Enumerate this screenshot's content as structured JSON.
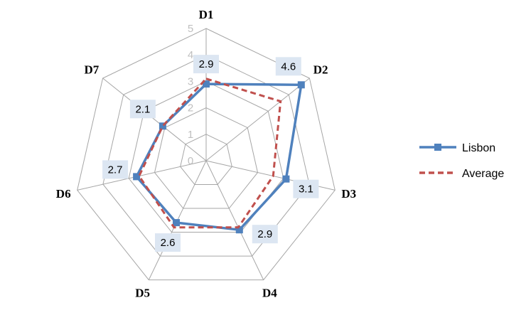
{
  "chart_data": {
    "type": "radar",
    "categories": [
      "D1",
      "D2",
      "D3",
      "D4",
      "D5",
      "D6",
      "D7"
    ],
    "rlim": [
      0,
      5
    ],
    "ticks": [
      "0",
      "1",
      "2",
      "3",
      "4",
      "5"
    ],
    "grid": true,
    "legend_position": "right",
    "series": [
      {
        "name": "Lisbon",
        "values": [
          2.9,
          4.6,
          3.1,
          2.9,
          2.6,
          2.7,
          2.1
        ],
        "data_labels": [
          "2.9",
          "4.6",
          "3.1",
          "2.9",
          "2.6",
          "2.7",
          "2.1"
        ],
        "color": "#4f81bd",
        "marker": "square",
        "line_style": "solid"
      },
      {
        "name": "Average",
        "values": [
          3.1,
          3.6,
          2.6,
          2.8,
          2.8,
          2.6,
          2.1
        ],
        "color": "#c0504d",
        "line_style": "dashed"
      }
    ],
    "data_label_background": "#dce6f2"
  }
}
